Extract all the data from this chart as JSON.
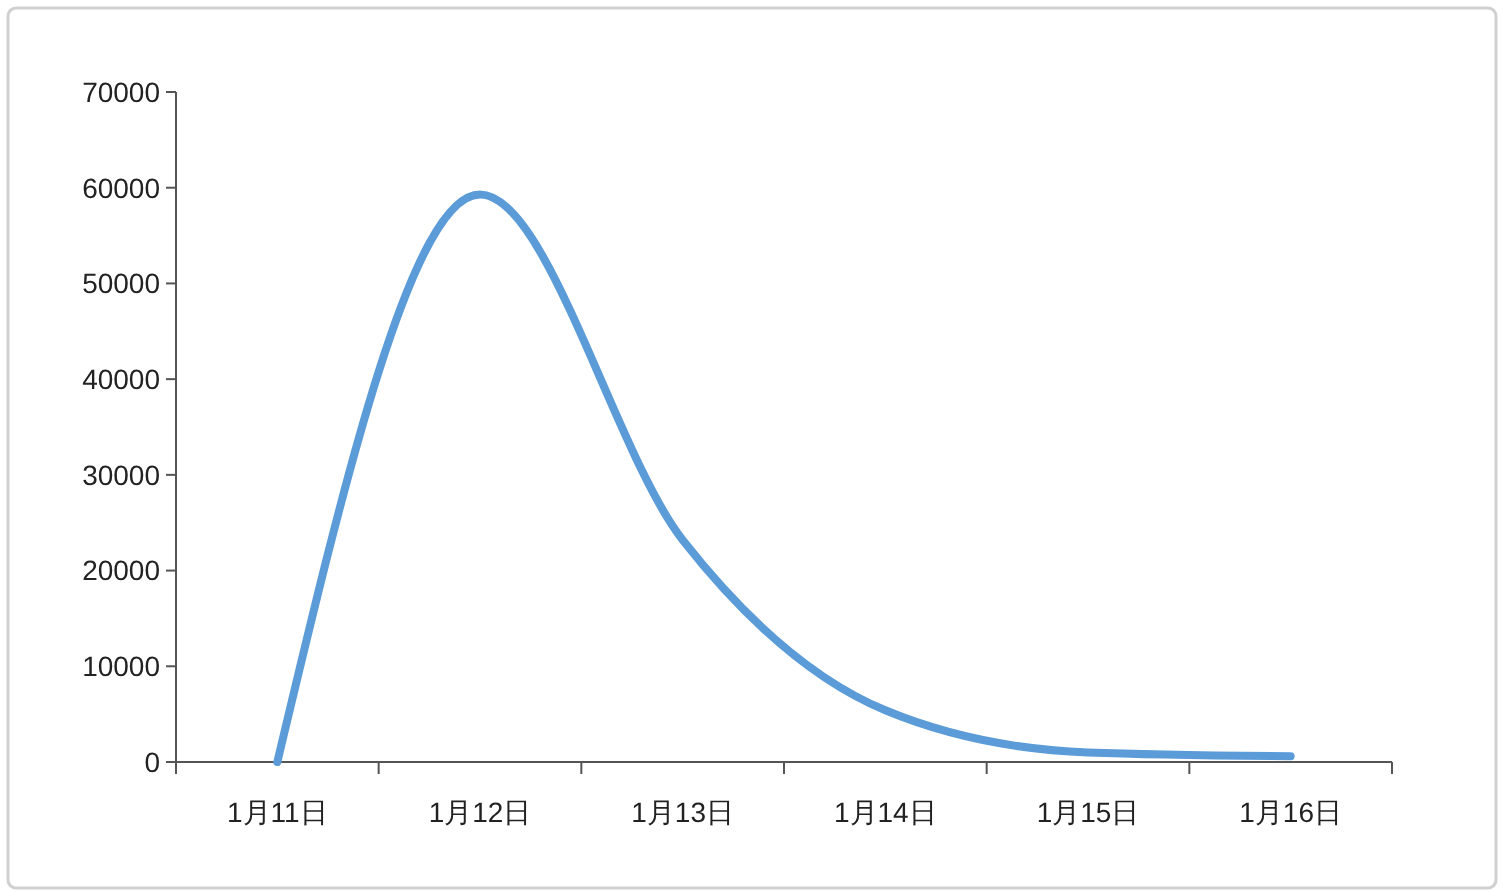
{
  "chart_data": {
    "type": "line",
    "categories": [
      "1月11日",
      "1月12日",
      "1月13日",
      "1月14日",
      "1月15日",
      "1月16日"
    ],
    "series": [
      {
        "color": "#5b9bd8",
        "values": [
          0,
          59300,
          23200,
          5400,
          1000,
          600
        ]
      }
    ],
    "ylim": [
      0,
      70000
    ],
    "yticks": [
      0,
      10000,
      20000,
      30000,
      40000,
      50000,
      60000,
      70000
    ],
    "grid": false,
    "marker": "none",
    "line_style": "solid"
  }
}
